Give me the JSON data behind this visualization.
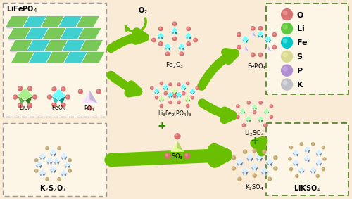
{
  "bg_color": "#faebd7",
  "gray_box_color": "#999999",
  "green_box_color": "#4a7c20",
  "arrow_color": "#6abf00",
  "green_c": "#6ab04c",
  "teal_c": "#30c8c8",
  "lavender_c": "#c0b0d8",
  "blue_gray_c": "#9ab0c8",
  "light_green_c": "#90d890",
  "legend_items": [
    {
      "label": "O",
      "color": "#d87070",
      "hilight": "#f0a0a0"
    },
    {
      "label": "Li",
      "color": "#60c840",
      "hilight": "#90e060"
    },
    {
      "label": "Fe",
      "color": "#00c8c8",
      "hilight": "#60e8e8"
    },
    {
      "label": "S",
      "color": "#d8d890",
      "hilight": "#f0f0b0"
    },
    {
      "label": "P",
      "color": "#b090d0",
      "hilight": "#d0b0f0"
    },
    {
      "label": "K",
      "color": "#c0c0c8",
      "hilight": "#e0e0e8"
    }
  ]
}
